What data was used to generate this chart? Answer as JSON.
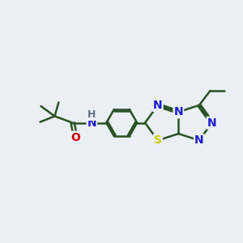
{
  "background_color": "#eaeff5",
  "bond_color": "#2a5224",
  "bond_width": 1.8,
  "atom_colors": {
    "N": "#1a1acc",
    "S": "#cccc00",
    "O": "#cc0000",
    "H": "#607080",
    "C": "#2a5224"
  },
  "font_size": 10,
  "fig_width": 3.0,
  "fig_height": 3.0
}
